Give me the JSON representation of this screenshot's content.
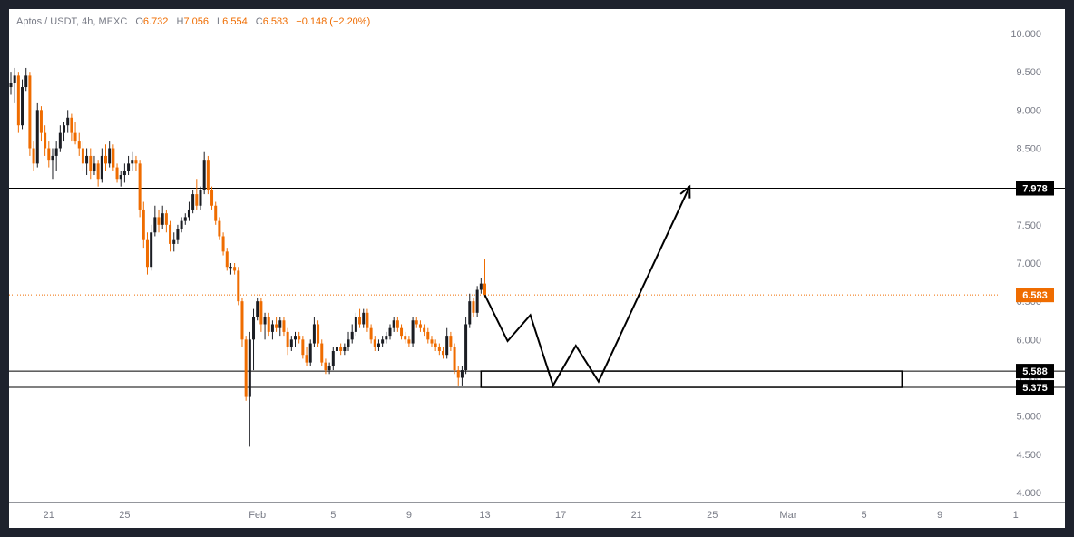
{
  "header": {
    "symbol": "Aptos / USDT, 4h, MEXC",
    "open_label": "O",
    "open": "6.732",
    "high_label": "H",
    "high": "7.056",
    "low_label": "L",
    "low": "6.554",
    "close_label": "C",
    "close": "6.583",
    "change": "−0.148 (−2.20%)"
  },
  "colors": {
    "up": "#1b1d23",
    "down": "#ef6c00",
    "price_line": "#ef6c00",
    "level": "#000000",
    "badge_bg": "#000000"
  },
  "chart_data": {
    "type": "candlestick",
    "timeframe": "4h",
    "ylim": [
      4.0,
      10.0
    ],
    "y_ticks": [
      "10.000",
      "9.500",
      "9.000",
      "8.500",
      "8.000",
      "7.500",
      "7.000",
      "6.500",
      "6.000",
      "5.500",
      "5.000",
      "4.500",
      "4.000"
    ],
    "x_ticks": [
      "21",
      "25",
      "Feb",
      "5",
      "9",
      "13",
      "17",
      "21",
      "25",
      "Mar",
      "5",
      "9",
      "1"
    ],
    "x_tick_index": [
      10,
      30,
      65,
      85,
      105,
      125,
      145,
      165,
      185,
      205,
      225,
      245,
      265
    ],
    "last_price": "6.583",
    "levels": [
      {
        "label": "7.978",
        "value": 7.978
      },
      {
        "label": "5.588",
        "value": 5.588
      },
      {
        "label": "5.375",
        "value": 5.375
      }
    ],
    "candles": [
      [
        9.3,
        9.5,
        9.2,
        9.35
      ],
      [
        9.35,
        9.55,
        9.1,
        9.45
      ],
      [
        9.45,
        9.5,
        8.7,
        8.8
      ],
      [
        8.8,
        9.4,
        8.75,
        9.3
      ],
      [
        9.3,
        9.55,
        9.25,
        9.45
      ],
      [
        9.45,
        9.5,
        8.4,
        8.5
      ],
      [
        8.5,
        8.6,
        8.2,
        8.3
      ],
      [
        8.3,
        9.1,
        8.25,
        9.0
      ],
      [
        9.0,
        9.05,
        8.6,
        8.7
      ],
      [
        8.7,
        8.8,
        8.4,
        8.5
      ],
      [
        8.5,
        8.6,
        8.25,
        8.35
      ],
      [
        8.35,
        8.5,
        8.1,
        8.4
      ],
      [
        8.4,
        8.6,
        8.2,
        8.5
      ],
      [
        8.5,
        8.8,
        8.45,
        8.7
      ],
      [
        8.7,
        8.85,
        8.6,
        8.8
      ],
      [
        8.8,
        9.0,
        8.7,
        8.9
      ],
      [
        8.9,
        8.95,
        8.6,
        8.7
      ],
      [
        8.7,
        8.85,
        8.55,
        8.6
      ],
      [
        8.6,
        8.7,
        8.4,
        8.5
      ],
      [
        8.5,
        8.6,
        8.2,
        8.3
      ],
      [
        8.3,
        8.5,
        8.15,
        8.4
      ],
      [
        8.4,
        8.5,
        8.1,
        8.2
      ],
      [
        8.2,
        8.4,
        8.15,
        8.3
      ],
      [
        8.3,
        8.35,
        8.0,
        8.1
      ],
      [
        8.1,
        8.5,
        8.05,
        8.4
      ],
      [
        8.4,
        8.55,
        8.2,
        8.3
      ],
      [
        8.3,
        8.6,
        8.25,
        8.5
      ],
      [
        8.5,
        8.55,
        8.2,
        8.25
      ],
      [
        8.25,
        8.3,
        8.05,
        8.1
      ],
      [
        8.1,
        8.2,
        8.0,
        8.15
      ],
      [
        8.15,
        8.3,
        8.05,
        8.2
      ],
      [
        8.2,
        8.4,
        8.15,
        8.3
      ],
      [
        8.3,
        8.45,
        8.2,
        8.35
      ],
      [
        8.35,
        8.4,
        8.2,
        8.3
      ],
      [
        8.3,
        8.35,
        7.6,
        7.7
      ],
      [
        7.7,
        7.8,
        7.2,
        7.3
      ],
      [
        7.3,
        7.4,
        6.85,
        6.95
      ],
      [
        6.95,
        7.5,
        6.9,
        7.4
      ],
      [
        7.4,
        7.75,
        7.35,
        7.6
      ],
      [
        7.6,
        7.7,
        7.4,
        7.5
      ],
      [
        7.5,
        7.75,
        7.45,
        7.65
      ],
      [
        7.65,
        7.7,
        7.4,
        7.5
      ],
      [
        7.5,
        7.55,
        7.15,
        7.25
      ],
      [
        7.25,
        7.4,
        7.15,
        7.3
      ],
      [
        7.3,
        7.5,
        7.25,
        7.45
      ],
      [
        7.45,
        7.6,
        7.4,
        7.55
      ],
      [
        7.55,
        7.65,
        7.5,
        7.6
      ],
      [
        7.6,
        7.8,
        7.55,
        7.7
      ],
      [
        7.7,
        7.95,
        7.65,
        7.9
      ],
      [
        7.9,
        8.1,
        7.7,
        7.75
      ],
      [
        7.75,
        8.0,
        7.7,
        7.95
      ],
      [
        7.95,
        8.45,
        7.9,
        8.35
      ],
      [
        8.35,
        8.4,
        7.9,
        7.95
      ],
      [
        7.95,
        8.0,
        7.7,
        7.75
      ],
      [
        7.75,
        7.8,
        7.5,
        7.55
      ],
      [
        7.55,
        7.6,
        7.3,
        7.35
      ],
      [
        7.35,
        7.4,
        7.1,
        7.15
      ],
      [
        7.15,
        7.2,
        6.9,
        6.95
      ],
      [
        6.95,
        7.0,
        6.85,
        6.95
      ],
      [
        6.95,
        7.0,
        6.85,
        6.9
      ],
      [
        6.9,
        6.95,
        6.45,
        6.5
      ],
      [
        6.5,
        6.55,
        5.9,
        6.0
      ],
      [
        6.0,
        6.05,
        5.2,
        5.25
      ],
      [
        5.25,
        6.1,
        4.6,
        6.0
      ],
      [
        6.0,
        6.4,
        5.6,
        6.3
      ],
      [
        6.3,
        6.55,
        6.25,
        6.5
      ],
      [
        6.5,
        6.55,
        6.1,
        6.2
      ],
      [
        6.2,
        6.35,
        6.0,
        6.3
      ],
      [
        6.3,
        6.35,
        6.05,
        6.1
      ],
      [
        6.1,
        6.25,
        6.0,
        6.2
      ],
      [
        6.2,
        6.3,
        6.1,
        6.15
      ],
      [
        6.15,
        6.3,
        6.05,
        6.25
      ],
      [
        6.25,
        6.3,
        6.05,
        6.1
      ],
      [
        6.1,
        6.15,
        5.8,
        5.9
      ],
      [
        5.9,
        6.05,
        5.85,
        6.0
      ],
      [
        6.0,
        6.1,
        5.9,
        6.05
      ],
      [
        6.05,
        6.1,
        5.95,
        6.0
      ],
      [
        6.0,
        6.05,
        5.75,
        5.8
      ],
      [
        5.8,
        5.9,
        5.65,
        5.7
      ],
      [
        5.7,
        6.0,
        5.65,
        5.95
      ],
      [
        5.95,
        6.3,
        5.9,
        6.2
      ],
      [
        6.2,
        6.25,
        5.9,
        5.95
      ],
      [
        5.95,
        6.0,
        5.65,
        5.7
      ],
      [
        5.7,
        5.75,
        5.55,
        5.6
      ],
      [
        5.6,
        5.7,
        5.55,
        5.65
      ],
      [
        5.65,
        5.9,
        5.6,
        5.85
      ],
      [
        5.85,
        5.95,
        5.8,
        5.9
      ],
      [
        5.9,
        5.95,
        5.8,
        5.85
      ],
      [
        5.85,
        5.95,
        5.8,
        5.9
      ],
      [
        5.9,
        6.1,
        5.85,
        6.0
      ],
      [
        6.0,
        6.2,
        5.95,
        6.1
      ],
      [
        6.1,
        6.35,
        6.05,
        6.3
      ],
      [
        6.3,
        6.4,
        6.15,
        6.2
      ],
      [
        6.2,
        6.4,
        6.15,
        6.35
      ],
      [
        6.35,
        6.4,
        6.1,
        6.15
      ],
      [
        6.15,
        6.2,
        5.95,
        6.0
      ],
      [
        6.0,
        6.05,
        5.85,
        5.9
      ],
      [
        5.9,
        6.0,
        5.85,
        5.95
      ],
      [
        5.95,
        6.05,
        5.9,
        6.0
      ],
      [
        6.0,
        6.1,
        5.95,
        6.05
      ],
      [
        6.05,
        6.2,
        6.0,
        6.15
      ],
      [
        6.15,
        6.3,
        6.1,
        6.25
      ],
      [
        6.25,
        6.3,
        6.1,
        6.15
      ],
      [
        6.15,
        6.2,
        6.0,
        6.05
      ],
      [
        6.05,
        6.1,
        5.95,
        6.0
      ],
      [
        6.0,
        6.05,
        5.9,
        5.95
      ],
      [
        5.95,
        6.3,
        5.9,
        6.25
      ],
      [
        6.25,
        6.3,
        6.15,
        6.2
      ],
      [
        6.2,
        6.25,
        6.1,
        6.15
      ],
      [
        6.15,
        6.2,
        6.05,
        6.1
      ],
      [
        6.1,
        6.15,
        5.95,
        6.0
      ],
      [
        6.0,
        6.05,
        5.9,
        5.95
      ],
      [
        5.95,
        6.0,
        5.85,
        5.9
      ],
      [
        5.9,
        5.95,
        5.8,
        5.85
      ],
      [
        5.85,
        5.9,
        5.75,
        5.8
      ],
      [
        5.8,
        6.15,
        5.75,
        6.05
      ],
      [
        6.05,
        6.1,
        5.85,
        5.9
      ],
      [
        5.9,
        5.95,
        5.55,
        5.6
      ],
      [
        5.6,
        5.65,
        5.4,
        5.5
      ],
      [
        5.5,
        5.65,
        5.4,
        5.6
      ],
      [
        5.6,
        6.3,
        5.55,
        6.2
      ],
      [
        6.2,
        6.6,
        6.15,
        6.5
      ],
      [
        6.5,
        6.55,
        6.3,
        6.35
      ],
      [
        6.35,
        6.7,
        6.3,
        6.65
      ],
      [
        6.65,
        6.8,
        6.6,
        6.732
      ],
      [
        6.732,
        7.056,
        6.554,
        6.583
      ]
    ]
  },
  "projection": {
    "path": [
      [
        125,
        6.583
      ],
      [
        131,
        5.98
      ],
      [
        137,
        6.32
      ],
      [
        143,
        5.4
      ],
      [
        149,
        5.92
      ],
      [
        155,
        5.45
      ],
      [
        179,
        8.0
      ]
    ]
  },
  "zone": {
    "start_index": 124,
    "end_index": 235,
    "top": 5.588,
    "bottom": 5.375
  }
}
